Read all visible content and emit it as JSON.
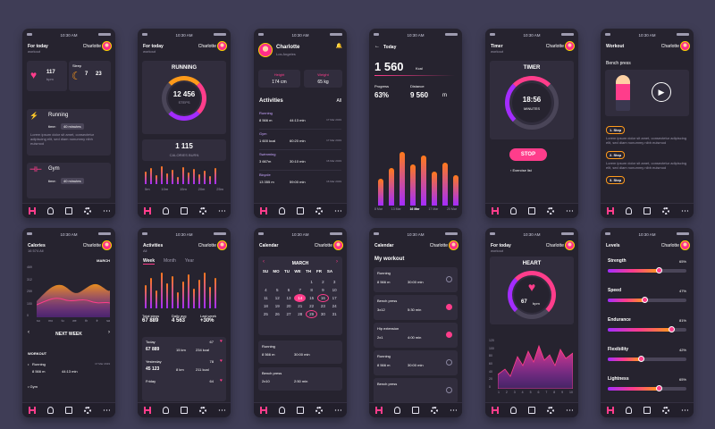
{
  "status_time": "10:30 AM",
  "nav": [
    "fitness-icon",
    "user-icon",
    "calendar-icon",
    "gear-icon",
    "more-icon"
  ],
  "p1": {
    "title": "For today",
    "sub": "workout",
    "user": "Charlotte",
    "heart_val": "117",
    "heart_unit": "bpm",
    "sleep_label": "Sleep",
    "sleep_h": "7",
    "sleep_m": "23",
    "run": "Running",
    "run_time_label": "time:",
    "run_time": "40 minutes",
    "lorem": "Lorem ipsum dolor sit amet, consectetur adipiscing elit, sed diam nonummy nibh euismod",
    "gym": "Gym",
    "gym_time_label": "time:",
    "gym_time": "40 minutes"
  },
  "p2": {
    "title": "For today",
    "sub": "workout",
    "user": "Charlotte",
    "running": "RUNNING",
    "steps": "12 456",
    "steps_label": "STEPS",
    "cal": "1 115",
    "cal_label": "CALORIES BURN",
    "ticks": [
      "5m",
      "10m",
      "15m",
      "20m",
      "25m"
    ]
  },
  "p3": {
    "name": "Charlotte",
    "city": "Los Angeles",
    "height_l": "Height",
    "height_v": "174 cm",
    "weight_l": "Weight",
    "weight_v": "65 kg",
    "acts": "Activities",
    "all": "All",
    "items": [
      {
        "n": "Running",
        "a": "8 566 m",
        "b": "44:13 min",
        "d": "17 Mar 2019"
      },
      {
        "n": "Gym",
        "a": "1 600 kcal",
        "b": "60:20 min",
        "d": "17 Mar 2019"
      },
      {
        "n": "Swimming",
        "a": "3 667m",
        "b": "30:10 min",
        "d": "16 Mar 2019"
      },
      {
        "n": "Bicycle",
        "a": "13 355 m",
        "b": "59:00 min",
        "d": "16 Mar 2019"
      }
    ]
  },
  "p4": {
    "back": "Today",
    "kcal": "1 560",
    "kcal_unit": "Kcal",
    "prog_l": "Progress",
    "prog_v": "63%",
    "dist_l": "Distance",
    "dist_v": "9 560",
    "dist_u": "m",
    "days": [
      "8 Mar",
      "13 Mar",
      "16 Mar",
      "17 Mar",
      "20 Mar"
    ]
  },
  "p5": {
    "title": "Timer",
    "sub": "workout",
    "user": "Charlotte",
    "timer": "TIMER",
    "time": "18:56",
    "unit": "MINUTES",
    "stop": "STOP",
    "list": "Exercise list"
  },
  "p6": {
    "title": "Workout",
    "user": "Charlotte",
    "ex": "Bench press",
    "s1": "1. Step",
    "s2": "2. Step",
    "s3": "3. Step",
    "lorem": "Lorem ipsum dolor sit amet, consectetur adipiscing elit, sed diam nonummy nibh euismod"
  },
  "p7": {
    "title": "Calories",
    "sub": "16 574 All",
    "user": "Charlotte",
    "month": "MARCH",
    "yticks": [
      "469",
      "312",
      "259",
      "100",
      "0"
    ],
    "xticks": [
      "su",
      "mo",
      "tu",
      "we",
      "th",
      "fr",
      "sa"
    ],
    "next": "NEXT WEEK",
    "workout": "WORKOUT",
    "r1n": "Running",
    "r1a": "8 566 m",
    "r1b": "44:13 min",
    "r1d": "17 Mar 2019",
    "r2n": "Gym"
  },
  "p8": {
    "title": "Activities",
    "sub": "All",
    "user": "Charlotte",
    "tabs": [
      "Week",
      "Month",
      "Year"
    ],
    "ts_l": "Total steps",
    "ts_v": "67 889",
    "da_l": "Daily avg",
    "da_v": "4 563",
    "lw_l": "Last week",
    "lw_v": "+30%",
    "rows": [
      {
        "d": "Today",
        "n": "67",
        "s": "67 889",
        "k": "15 km",
        "c": "234 kcal"
      },
      {
        "d": "Yesterday",
        "n": "78",
        "s": "45 123",
        "k": "8 km",
        "c": "211 kcal"
      },
      {
        "d": "Friday",
        "n": "64",
        "s": "",
        "k": "",
        "c": ""
      }
    ]
  },
  "p9": {
    "title": "Calendar",
    "user": "Charlotte",
    "month": "MARCH",
    "dow": [
      "SU",
      "MO",
      "TU",
      "WE",
      "TH",
      "FR",
      "SA"
    ],
    "days": [
      "",
      "",
      "",
      "",
      "1",
      "2",
      "3",
      "4",
      "5",
      "6",
      "7",
      "8",
      "9",
      "10",
      "11",
      "12",
      "13",
      "14",
      "15",
      "16",
      "17",
      "18",
      "19",
      "20",
      "21",
      "22",
      "23",
      "24",
      "25",
      "26",
      "27",
      "28",
      "29",
      "30",
      "31"
    ],
    "e1n": "Running",
    "e1a": "8 566 m",
    "e1b": "30:00 min",
    "e2n": "Bench press",
    "e2a": "2x10",
    "e2b": "2:50 min"
  },
  "p10": {
    "title": "Calendar",
    "user": "Charlotte",
    "my": "My workout",
    "items": [
      {
        "n": "Running",
        "a": "8 566 m",
        "b": "30:00 min",
        "on": false
      },
      {
        "n": "Bench press",
        "a": "3x12",
        "b": "5:30 min",
        "on": true
      },
      {
        "n": "Hip extension",
        "a": "2x1",
        "b": "4:00 min",
        "on": true
      },
      {
        "n": "Running",
        "a": "8 566 m",
        "b": "30:00 min",
        "on": false
      },
      {
        "n": "Bench press",
        "a": "",
        "b": "",
        "on": false
      }
    ]
  },
  "p11": {
    "title": "For today",
    "sub": "workout",
    "user": "Charlotte",
    "heart": "HEART",
    "bpm": "67",
    "bpm_u": "bpm",
    "yticks": [
      "120",
      "100",
      "80",
      "60",
      "40",
      "20",
      "0"
    ],
    "xticks": [
      "1",
      "2",
      "3",
      "4",
      "5",
      "6",
      "7",
      "8",
      "9",
      "10"
    ]
  },
  "p12": {
    "title": "Levels",
    "user": "Charlotte",
    "levels": [
      {
        "n": "Strength",
        "p": "65%",
        "v": 0.65
      },
      {
        "n": "Speed",
        "p": "47%",
        "v": 0.47
      },
      {
        "n": "Endurance",
        "p": "81%",
        "v": 0.81
      },
      {
        "n": "Flexibility",
        "p": "42%",
        "v": 0.42
      },
      {
        "n": "Lightness",
        "p": "65%",
        "v": 0.65
      }
    ]
  },
  "colors": {
    "bg": "#3f3d56",
    "panel": "#26232f",
    "card": "#312d3d",
    "accent": "#ff3d8b",
    "orange": "#ff9a1a",
    "purple": "#a32cff"
  }
}
